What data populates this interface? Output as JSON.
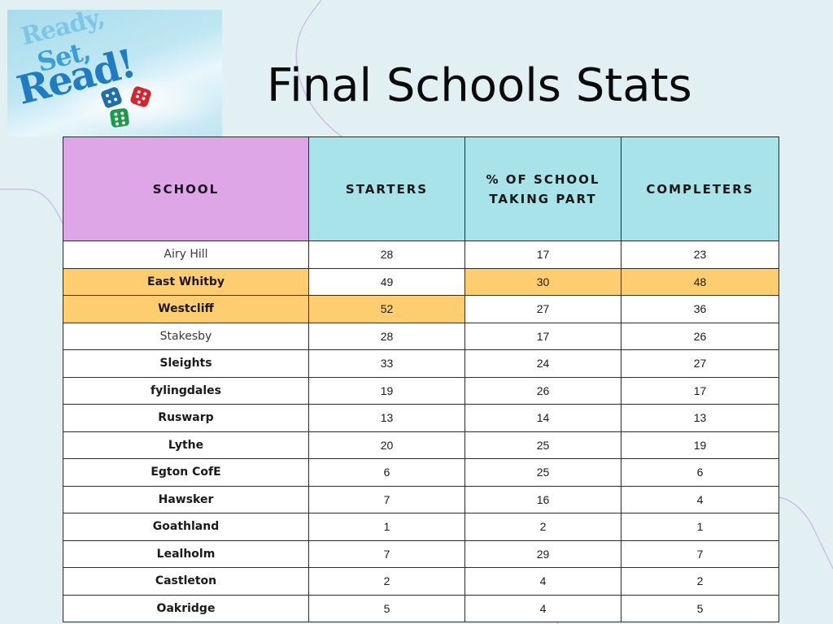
{
  "logo": {
    "line1": "Ready,",
    "line2": "Set,",
    "line3": "Read!",
    "icon": "dice-icon"
  },
  "title": "Final Schools Stats",
  "colors": {
    "background": "#e2f0f4",
    "school_header": "#dfa6e7",
    "other_headers": "#a8e3ea",
    "highlight": "#fecd70"
  },
  "table": {
    "headers": [
      "SCHOOL",
      "STARTERS",
      "% OF SCHOOL TAKING PART",
      "COMPLETERS"
    ],
    "header_lines": {
      "pct_line1": "% OF SCHOOL",
      "pct_line2": "TAKING PART"
    },
    "rows": [
      {
        "school": "Airy Hill",
        "starters": "28",
        "pct": "17",
        "completers": "23",
        "highlight": []
      },
      {
        "school": "East Whitby",
        "starters": "49",
        "pct": "30",
        "completers": "48",
        "highlight": [
          "school",
          "pct",
          "completers"
        ]
      },
      {
        "school": "Westcliff",
        "starters": "52",
        "pct": "27",
        "completers": "36",
        "highlight": [
          "school",
          "starters"
        ]
      },
      {
        "school": "Stakesby",
        "starters": "28",
        "pct": "17",
        "completers": "26",
        "highlight": []
      },
      {
        "school": "Sleights",
        "starters": "33",
        "pct": "24",
        "completers": "27",
        "highlight": []
      },
      {
        "school": "fylingdales",
        "starters": "19",
        "pct": "26",
        "completers": "17",
        "highlight": []
      },
      {
        "school": "Ruswarp",
        "starters": "13",
        "pct": "14",
        "completers": "13",
        "highlight": []
      },
      {
        "school": "Lythe",
        "starters": "20",
        "pct": "25",
        "completers": "19",
        "highlight": []
      },
      {
        "school": "Egton CofE",
        "starters": "6",
        "pct": "25",
        "completers": "6",
        "highlight": []
      },
      {
        "school": "Hawsker",
        "starters": "7",
        "pct": "16",
        "completers": "4",
        "highlight": []
      },
      {
        "school": "Goathland",
        "starters": "1",
        "pct": "2",
        "completers": "1",
        "highlight": []
      },
      {
        "school": "Lealholm",
        "starters": "7",
        "pct": "29",
        "completers": "7",
        "highlight": []
      },
      {
        "school": "Castleton",
        "starters": "2",
        "pct": "4",
        "completers": "2",
        "highlight": []
      },
      {
        "school": "Oakridge",
        "starters": "5",
        "pct": "4",
        "completers": "5",
        "highlight": []
      }
    ]
  }
}
